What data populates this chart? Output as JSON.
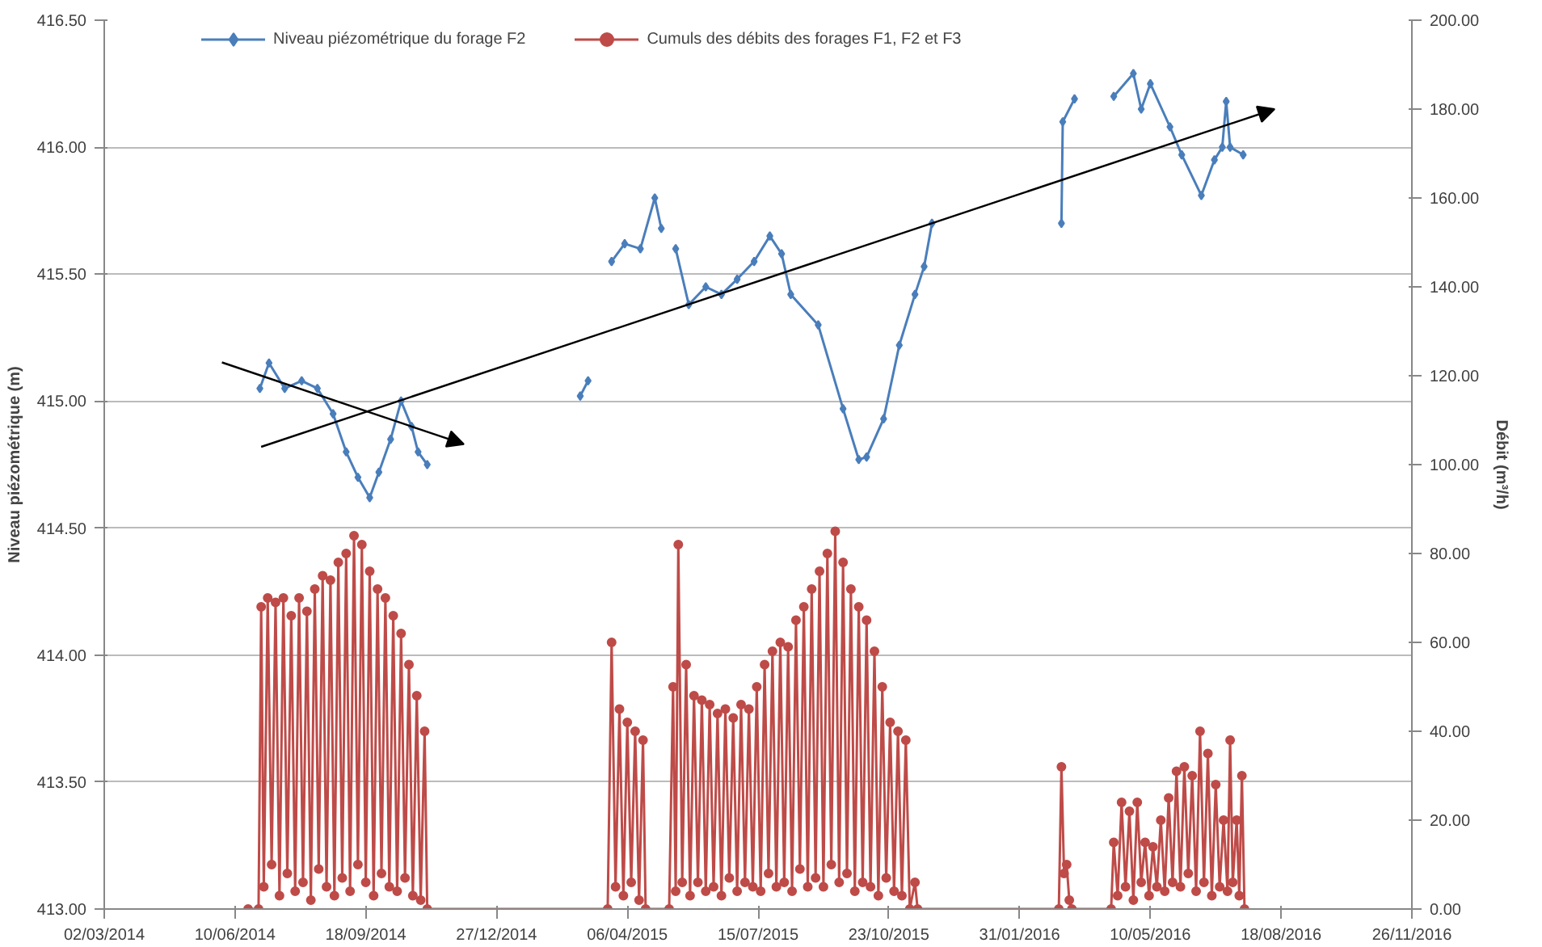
{
  "chart_data": {
    "type": "line",
    "ylabel": "Niveau piézométrique (m)",
    "y2label": "Débit (m³/h)",
    "xlim": [
      "2014-03-02",
      "2016-11-26"
    ],
    "xticks": [
      {
        "value": "2014-03-02",
        "label": "02/03/2014"
      },
      {
        "value": "2014-06-10",
        "label": "10/06/2014"
      },
      {
        "value": "2014-09-18",
        "label": "18/09/2014"
      },
      {
        "value": "2014-12-27",
        "label": "27/12/2014"
      },
      {
        "value": "2015-04-06",
        "label": "06/04/2015"
      },
      {
        "value": "2015-07-15",
        "label": "15/07/2015"
      },
      {
        "value": "2015-10-23",
        "label": "23/10/2015"
      },
      {
        "value": "2016-01-31",
        "label": "31/01/2016"
      },
      {
        "value": "2016-05-10",
        "label": "10/05/2016"
      },
      {
        "value": "2016-08-18",
        "label": "18/08/2016"
      },
      {
        "value": "2016-11-26",
        "label": "26/11/2016"
      }
    ],
    "ylim": [
      413,
      416.5
    ],
    "yticks": [
      {
        "value": 413,
        "label": "413.00"
      },
      {
        "value": 413.5,
        "label": "413.50"
      },
      {
        "value": 414,
        "label": "414.00"
      },
      {
        "value": 414.5,
        "label": "414.50"
      },
      {
        "value": 415,
        "label": "415.00"
      },
      {
        "value": 415.5,
        "label": "415.50"
      },
      {
        "value": 416,
        "label": "416.00"
      },
      {
        "value": 416.5,
        "label": "416.50"
      }
    ],
    "y2lim": [
      0,
      200
    ],
    "y2ticks": [
      {
        "value": 0,
        "label": "0.00"
      },
      {
        "value": 20,
        "label": "20.00"
      },
      {
        "value": 40,
        "label": "40.00"
      },
      {
        "value": 60,
        "label": "60.00"
      },
      {
        "value": 80,
        "label": "80.00"
      },
      {
        "value": 100,
        "label": "100.00"
      },
      {
        "value": 120,
        "label": "120.00"
      },
      {
        "value": 140,
        "label": "140.00"
      },
      {
        "value": 160,
        "label": "160.00"
      },
      {
        "value": 180,
        "label": "180.00"
      },
      {
        "value": 200,
        "label": "200.00"
      }
    ],
    "grid": "y",
    "legend": "top",
    "line_style": "solid",
    "series": [
      {
        "name": "Niveau piézométrique du forage F2",
        "color": "#4a7ebb",
        "marker": "diamond",
        "x": [
          "2014-06-29",
          "2014-07-06",
          "2014-07-18",
          "2014-07-31",
          "2014-08-12",
          "2014-08-24",
          "2014-09-03",
          "2014-09-12",
          "2014-09-21",
          "2014-09-28",
          "2014-10-07",
          "2014-10-15",
          "2014-10-23",
          "2014-10-28",
          "2014-11-04",
          "2014-12-01",
          "2015-03-01",
          "2015-03-07",
          "2015-03-15",
          "2015-03-25",
          "2015-04-04",
          "2015-04-16",
          "2015-04-27",
          "2015-05-02",
          "2015-05-05",
          "2015-05-13",
          "2015-05-23",
          "2015-06-05",
          "2015-06-17",
          "2015-06-29",
          "2015-07-12",
          "2015-07-24",
          "2015-08-02",
          "2015-08-09",
          "2015-08-30",
          "2015-09-18",
          "2015-09-30",
          "2015-10-06",
          "2015-10-19",
          "2015-10-31",
          "2015-11-12",
          "2015-11-19",
          "2015-11-25",
          "2015-12-15",
          "2016-03-03",
          "2016-03-04",
          "2016-03-13",
          "2016-03-25",
          "2016-04-12",
          "2016-04-27",
          "2016-05-03",
          "2016-05-10",
          "2016-05-25",
          "2016-06-03",
          "2016-06-18",
          "2016-06-28",
          "2016-07-04",
          "2016-07-07",
          "2016-07-10",
          "2016-07-20"
        ],
        "values": [
          415.05,
          415.15,
          415.05,
          415.08,
          415.05,
          414.95,
          414.8,
          414.7,
          414.62,
          414.72,
          414.85,
          415.0,
          414.9,
          414.8,
          414.75,
          null,
          415.02,
          415.08,
          null,
          415.55,
          415.62,
          415.6,
          415.8,
          415.68,
          null,
          415.6,
          415.38,
          415.45,
          415.42,
          415.48,
          415.55,
          415.65,
          415.58,
          415.42,
          415.3,
          414.97,
          414.77,
          414.78,
          414.93,
          415.22,
          415.42,
          415.53,
          415.7,
          null,
          415.7,
          416.1,
          416.19,
          null,
          416.2,
          416.29,
          416.15,
          416.25,
          416.08,
          415.97,
          415.81,
          415.95,
          416.0,
          416.18,
          416.0,
          415.97
        ]
      },
      {
        "name": "Cumuls des débits des forages F1, F2 et F3",
        "color": "#be4b48",
        "marker": "circle",
        "axis": "y2",
        "x": [
          "2014-06-20",
          "2014-06-28",
          "2014-06-30",
          "2014-07-02",
          "2014-07-05",
          "2014-07-08",
          "2014-07-11",
          "2014-07-14",
          "2014-07-17",
          "2014-07-20",
          "2014-07-23",
          "2014-07-26",
          "2014-07-29",
          "2014-08-01",
          "2014-08-04",
          "2014-08-07",
          "2014-08-10",
          "2014-08-13",
          "2014-08-16",
          "2014-08-19",
          "2014-08-22",
          "2014-08-25",
          "2014-08-28",
          "2014-08-31",
          "2014-09-03",
          "2014-09-06",
          "2014-09-09",
          "2014-09-12",
          "2014-09-15",
          "2014-09-18",
          "2014-09-21",
          "2014-09-24",
          "2014-09-27",
          "2014-09-30",
          "2014-10-03",
          "2014-10-06",
          "2014-10-09",
          "2014-10-12",
          "2014-10-15",
          "2014-10-18",
          "2014-10-21",
          "2014-10-24",
          "2014-10-27",
          "2014-10-30",
          "2014-11-02",
          "2014-11-04",
          "2015-03-22",
          "2015-03-25",
          "2015-03-28",
          "2015-03-31",
          "2015-04-03",
          "2015-04-06",
          "2015-04-09",
          "2015-04-12",
          "2015-04-15",
          "2015-04-18",
          "2015-04-20",
          "2015-05-08",
          "2015-05-11",
          "2015-05-13",
          "2015-05-15",
          "2015-05-18",
          "2015-05-21",
          "2015-05-24",
          "2015-05-27",
          "2015-05-30",
          "2015-06-02",
          "2015-06-05",
          "2015-06-08",
          "2015-06-11",
          "2015-06-14",
          "2015-06-17",
          "2015-06-20",
          "2015-06-23",
          "2015-06-26",
          "2015-06-29",
          "2015-07-02",
          "2015-07-05",
          "2015-07-08",
          "2015-07-11",
          "2015-07-14",
          "2015-07-17",
          "2015-07-20",
          "2015-07-23",
          "2015-07-26",
          "2015-07-29",
          "2015-08-01",
          "2015-08-04",
          "2015-08-07",
          "2015-08-10",
          "2015-08-13",
          "2015-08-16",
          "2015-08-19",
          "2015-08-22",
          "2015-08-25",
          "2015-08-28",
          "2015-08-31",
          "2015-09-03",
          "2015-09-06",
          "2015-09-09",
          "2015-09-12",
          "2015-09-15",
          "2015-09-18",
          "2015-09-21",
          "2015-09-24",
          "2015-09-27",
          "2015-09-30",
          "2015-10-03",
          "2015-10-06",
          "2015-10-09",
          "2015-10-12",
          "2015-10-15",
          "2015-10-18",
          "2015-10-21",
          "2015-10-24",
          "2015-10-27",
          "2015-10-30",
          "2015-11-02",
          "2015-11-05",
          "2015-11-08",
          "2015-11-12",
          "2015-11-14",
          "2016-03-01",
          "2016-03-03",
          "2016-03-05",
          "2016-03-07",
          "2016-03-09",
          "2016-03-11",
          "2016-04-10",
          "2016-04-12",
          "2016-04-15",
          "2016-04-18",
          "2016-04-21",
          "2016-04-24",
          "2016-04-27",
          "2016-04-30",
          "2016-05-03",
          "2016-05-06",
          "2016-05-09",
          "2016-05-12",
          "2016-05-15",
          "2016-05-18",
          "2016-05-21",
          "2016-05-24",
          "2016-05-27",
          "2016-05-30",
          "2016-06-02",
          "2016-06-05",
          "2016-06-08",
          "2016-06-11",
          "2016-06-14",
          "2016-06-17",
          "2016-06-20",
          "2016-06-23",
          "2016-06-26",
          "2016-06-29",
          "2016-07-02",
          "2016-07-05",
          "2016-07-08",
          "2016-07-10",
          "2016-07-12",
          "2016-07-15",
          "2016-07-17",
          "2016-07-19",
          "2016-07-21"
        ],
        "values": [
          0,
          0,
          68,
          5,
          70,
          10,
          69,
          3,
          70,
          8,
          66,
          4,
          70,
          6,
          67,
          2,
          72,
          9,
          75,
          5,
          74,
          3,
          78,
          7,
          80,
          4,
          84,
          10,
          82,
          6,
          76,
          3,
          72,
          8,
          70,
          5,
          66,
          4,
          62,
          7,
          55,
          3,
          48,
          2,
          40,
          0,
          0,
          60,
          5,
          45,
          3,
          42,
          6,
          40,
          2,
          38,
          0,
          0,
          50,
          4,
          82,
          6,
          55,
          3,
          48,
          6,
          47,
          4,
          46,
          5,
          44,
          3,
          45,
          7,
          43,
          4,
          46,
          6,
          45,
          5,
          50,
          4,
          55,
          8,
          58,
          5,
          60,
          6,
          59,
          4,
          65,
          9,
          68,
          5,
          72,
          7,
          76,
          5,
          80,
          10,
          85,
          6,
          78,
          8,
          72,
          4,
          68,
          6,
          65,
          5,
          58,
          3,
          50,
          7,
          42,
          4,
          40,
          3,
          38,
          0,
          6,
          0,
          0,
          32,
          8,
          10,
          2,
          0,
          0,
          15,
          3,
          24,
          5,
          22,
          2,
          24,
          6,
          15,
          3,
          14,
          5,
          20,
          4,
          25,
          6,
          31,
          5,
          32,
          8,
          30,
          4,
          40,
          6,
          35,
          3,
          28,
          5,
          20,
          4,
          38,
          6,
          20,
          3,
          30,
          0
        ]
      }
    ]
  }
}
